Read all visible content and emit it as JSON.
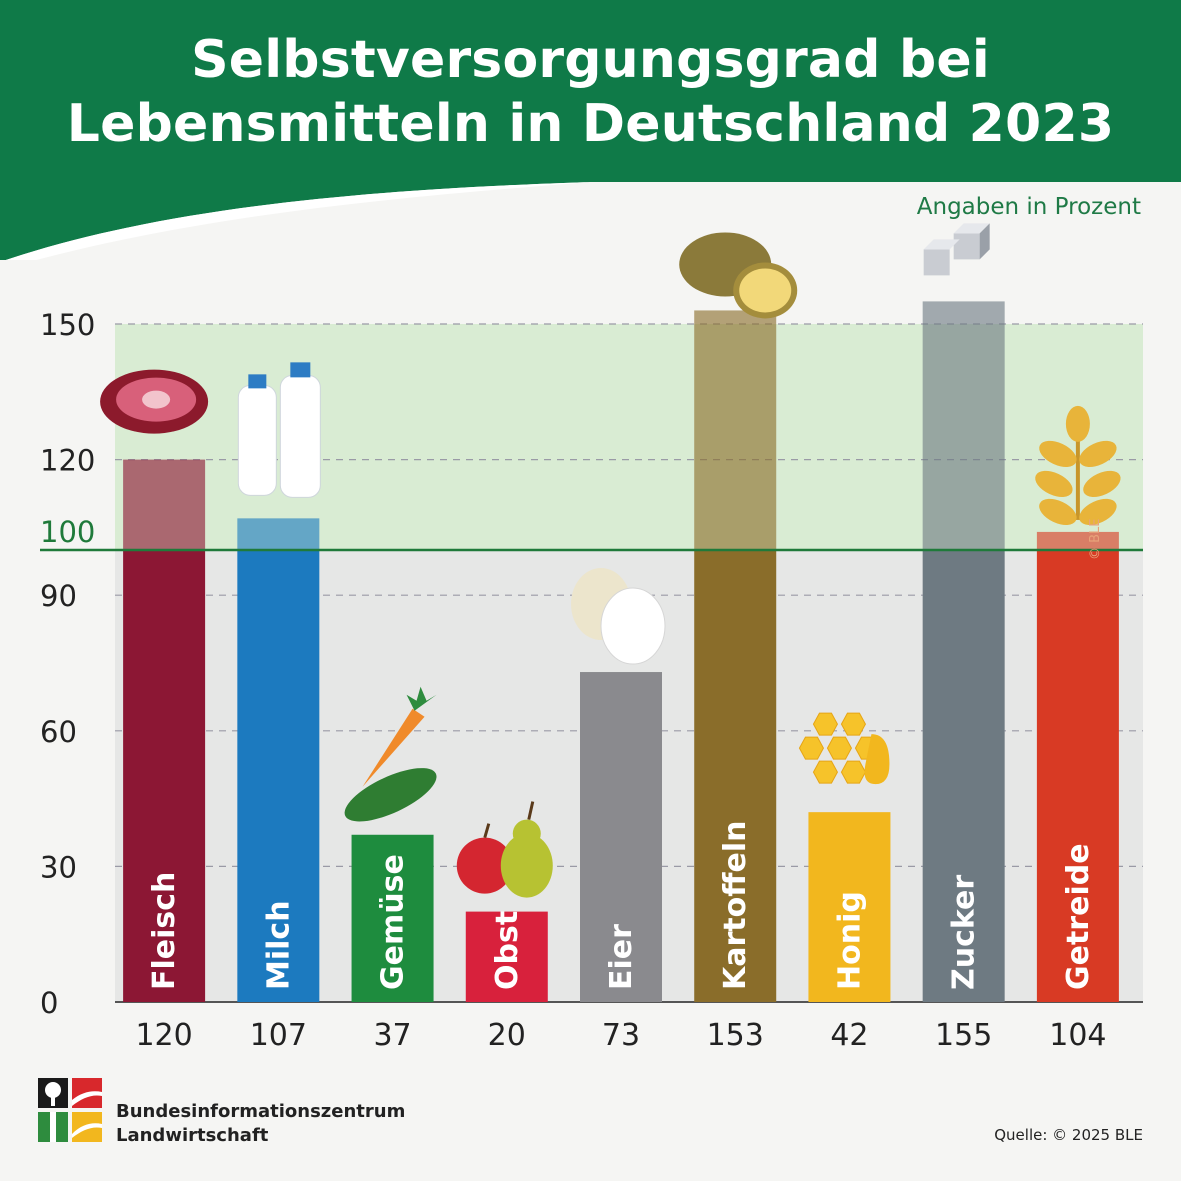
{
  "header": {
    "title_line1": "Selbstversorgungsgrad bei",
    "title_line2": "Lebensmitteln in Deutschland 2023",
    "unit_note": "Angaben in Prozent"
  },
  "footer": {
    "org_line1": "Bundesinformationszentrum",
    "org_line2": "Landwirtschaft",
    "source": "Quelle: © 2025 BLE",
    "watermark": "© BLE"
  },
  "colors": {
    "header_green": "#0f7a48",
    "reference_line": "#1f7a3a",
    "above_100_band": "#d9ecd3"
  },
  "chart_data": {
    "type": "bar",
    "title": "Selbstversorgungsgrad bei Lebensmitteln in Deutschland 2023",
    "ylabel": "Angaben in Prozent",
    "ylim": [
      0,
      160
    ],
    "yticks": [
      0,
      30,
      60,
      90,
      120,
      150
    ],
    "reference_line": {
      "value": 100,
      "label": "100"
    },
    "categories": [
      "Fleisch",
      "Milch",
      "Gemüse",
      "Obst",
      "Eier",
      "Kartoffeln",
      "Honig",
      "Zucker",
      "Getreide"
    ],
    "values": [
      120,
      107,
      37,
      20,
      73,
      153,
      42,
      155,
      104
    ],
    "value_labels": [
      "120",
      "107",
      "37",
      "20",
      "73",
      "153",
      "42",
      "155",
      "104"
    ],
    "bar_colors": [
      "#8c1734",
      "#1c7abf",
      "#1e8c3e",
      "#d8213c",
      "#8a8a8e",
      "#8a6d2a",
      "#f2b71e",
      "#6e7a82",
      "#d83a24"
    ],
    "icons": [
      "meat-icon",
      "milk-bottles-icon",
      "vegetables-icon",
      "fruit-icon",
      "eggs-icon",
      "potatoes-icon",
      "honeycomb-icon",
      "sugar-cubes-icon",
      "wheat-icon"
    ],
    "grid": true
  }
}
